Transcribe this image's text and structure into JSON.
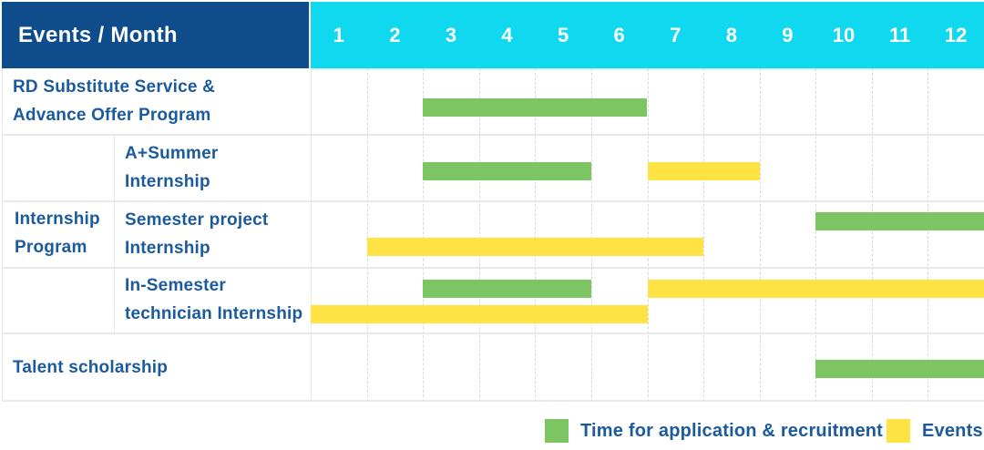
{
  "table": {
    "header": {
      "title": "Events / Month",
      "months": [
        "1",
        "2",
        "3",
        "4",
        "5",
        "6",
        "7",
        "8",
        "9",
        "10",
        "11",
        "12"
      ]
    },
    "row_labels": {
      "rd": [
        "RD Substitute Service &",
        "Advance Offer Program"
      ],
      "group": [
        "Internship",
        "Program"
      ],
      "summer": [
        "A+Summer",
        "Internship"
      ],
      "semester": [
        "Semester project",
        "Internship"
      ],
      "insemester": [
        "In-Semester",
        "technician Internship"
      ],
      "talent": [
        "Talent scholarship"
      ]
    }
  },
  "legend": {
    "application": "Time for application & recruitment",
    "events": "Events"
  },
  "colors": {
    "header_bg": "#0E4C8B",
    "months_bg": "#10D9EF",
    "green": "#7DC462",
    "yellow": "#FFE344",
    "label_text": "#1B5A9C",
    "grid_solid": "#E8E8E8",
    "grid_dotted": "#D8D8D8",
    "header_underline": "#D7F2FA"
  },
  "chart_data": {
    "type": "bar",
    "subtype": "gantt-schedule",
    "title": "Events / Month",
    "x_categories": [
      "1",
      "2",
      "3",
      "4",
      "5",
      "6",
      "7",
      "8",
      "9",
      "10",
      "11",
      "12"
    ],
    "x_range": [
      1,
      12
    ],
    "grid": true,
    "legend_position": "bottom-right",
    "legend": [
      {
        "label": "Time for application & recruitment",
        "color": "#7DC462",
        "key": "green"
      },
      {
        "label": "Events",
        "color": "#FFE344",
        "key": "yellow"
      }
    ],
    "rows": [
      {
        "label": "RD Substitute Service & Advance Offer Program",
        "group": "",
        "bars": [
          {
            "color": "green",
            "start_month": 3,
            "end_month": 6,
            "line": 1
          }
        ]
      },
      {
        "label": "A+Summer Internship",
        "group": "Internship Program",
        "bars": [
          {
            "color": "green",
            "start_month": 3,
            "end_month": 5,
            "line": 1
          },
          {
            "color": "yellow",
            "start_month": 7,
            "end_month": 8,
            "line": 1
          }
        ]
      },
      {
        "label": "Semester project Internship",
        "group": "Internship Program",
        "bars": [
          {
            "color": "green",
            "start_month": 10,
            "end_month": 12,
            "line": 1
          },
          {
            "color": "yellow",
            "start_month": 2,
            "end_month": 7,
            "line": 2
          }
        ]
      },
      {
        "label": "In-Semester technician Internship",
        "group": "Internship Program",
        "bars": [
          {
            "color": "green",
            "start_month": 3,
            "end_month": 5,
            "line": 1
          },
          {
            "color": "yellow",
            "start_month": 7,
            "end_month": 12,
            "line": 1
          },
          {
            "color": "yellow",
            "start_month": 1,
            "end_month": 6,
            "line": 2
          }
        ]
      },
      {
        "label": "Talent scholarship",
        "group": "",
        "bars": [
          {
            "color": "green",
            "start_month": 10,
            "end_month": 12,
            "line": 1
          }
        ]
      }
    ]
  }
}
